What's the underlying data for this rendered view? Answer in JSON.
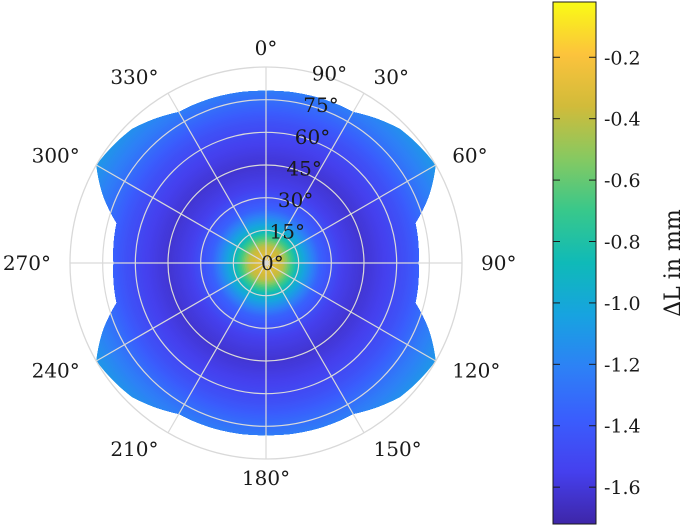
{
  "chart_data": {
    "type": "polar-heatmap",
    "title": "",
    "angular_ticks": [
      "0°",
      "30°",
      "60°",
      "90°",
      "120°",
      "150°",
      "180°",
      "210°",
      "240°",
      "270°",
      "300°",
      "330°"
    ],
    "radial_ticks": [
      "0°",
      "15°",
      "30°",
      "45°",
      "60°",
      "75°",
      "90°"
    ],
    "radial_range": [
      0,
      90
    ],
    "grid": true,
    "theta_zero_location": "top",
    "theta_direction": "clockwise",
    "max_radius_profile": {
      "azimuth_deg": [
        0,
        30,
        45,
        60,
        67.5,
        75,
        90,
        105,
        112.5,
        120,
        135,
        150,
        180,
        210,
        225,
        240,
        247.5,
        255,
        270,
        285,
        292.5,
        300,
        315,
        330,
        360
      ],
      "max_radius_deg": [
        79,
        80,
        87,
        90,
        81,
        71,
        70,
        71,
        81,
        90,
        87,
        80,
        79,
        80,
        87,
        90,
        81,
        71,
        70,
        71,
        81,
        90,
        87,
        80,
        79
      ]
    },
    "radial_value_profile": {
      "radius_deg": [
        0,
        8,
        15,
        25,
        35,
        45,
        55,
        65,
        75,
        90
      ],
      "delta_L_mm": [
        -0.22,
        -0.4,
        -0.9,
        -1.35,
        -1.55,
        -1.62,
        -1.55,
        -1.45,
        -1.3,
        -1.1
      ]
    },
    "colorbar": {
      "label": "ΔL in mm",
      "range": [
        -1.72,
        -0.02
      ],
      "ticks": [
        "-0.2",
        "-0.4",
        "-0.6",
        "-0.8",
        "-1.0",
        "-1.2",
        "-1.4",
        "-1.6"
      ],
      "tick_values": [
        -0.2,
        -0.4,
        -0.6,
        -0.8,
        -1.0,
        -1.2,
        -1.4,
        -1.6
      ],
      "colormap": "parula"
    }
  }
}
